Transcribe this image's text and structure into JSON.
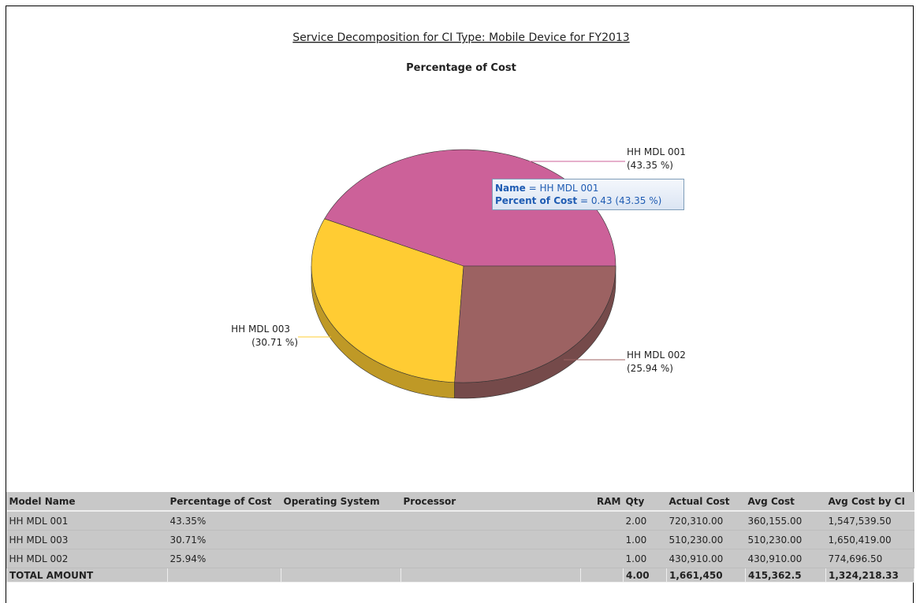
{
  "chart_data": {
    "type": "pie",
    "title": "Service Decomposition for CI Type: Mobile Device for FY2013",
    "subtitle": "Percentage of Cost",
    "categories": [
      "HH MDL 001",
      "HH MDL 003",
      "HH MDL 002"
    ],
    "values": [
      43.35,
      30.71,
      25.94
    ],
    "value_labels": [
      "(43.35 %)",
      "(30.71 %)",
      "(25.94 %)"
    ],
    "colors": [
      "#cc6199",
      "#ffcc33",
      "#9c6262"
    ]
  },
  "tooltip": {
    "name_label": "Name",
    "name_value": "= HH MDL 001",
    "percent_label": "Percent of Cost",
    "percent_value": "= 0.43 (43.35 %)"
  },
  "table": {
    "headers": [
      "Model Name",
      "Percentage of Cost",
      "Operating System",
      "Processor",
      "RAM",
      "Qty",
      "Actual Cost",
      "Avg Cost",
      "Avg Cost by CI"
    ],
    "rows": [
      [
        "HH MDL 001",
        "43.35%",
        null,
        null,
        null,
        "2.00",
        "720,310.00",
        "360,155.00",
        "1,547,539.50"
      ],
      [
        "HH MDL 003",
        "30.71%",
        null,
        null,
        null,
        "1.00",
        "510,230.00",
        "510,230.00",
        "1,650,419.00"
      ],
      [
        "HH MDL 002",
        "25.94%",
        null,
        null,
        null,
        "1.00",
        "430,910.00",
        "430,910.00",
        "774,696.50"
      ]
    ],
    "total": [
      "TOTAL AMOUNT",
      null,
      null,
      null,
      null,
      "4.00",
      "1,661,450",
      "415,362.5",
      "1,324,218.33"
    ]
  }
}
